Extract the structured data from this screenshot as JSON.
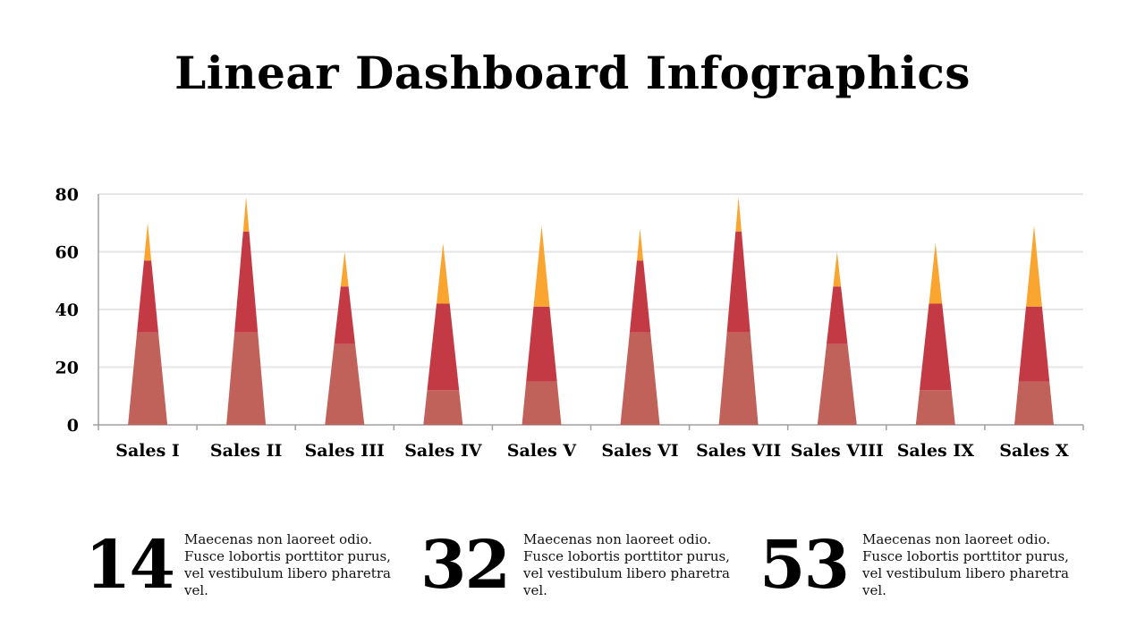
{
  "title": "Linear Dashboard Infographics",
  "colors": {
    "bottom": "#c0625a",
    "middle": "#c33a45",
    "top": "#f9a530",
    "grid": "#e6e6e6",
    "axis": "#a0a0a0"
  },
  "chart_data": {
    "type": "bar",
    "title": "",
    "xlabel": "",
    "ylabel": "",
    "ylim": [
      0,
      80
    ],
    "yticks": [
      0,
      20,
      40,
      60,
      80
    ],
    "grid": true,
    "categories": [
      "Sales I",
      "Sales II",
      "Sales III",
      "Sales IV",
      "Sales V",
      "Sales VI",
      "Sales VII",
      "Sales VIII",
      "Sales IX",
      "Sales X"
    ],
    "stacked": true,
    "series": [
      {
        "values": [
          32,
          32,
          28,
          12,
          15,
          32,
          32,
          28,
          12,
          15
        ]
      },
      {
        "values": [
          25,
          35,
          20,
          30,
          26,
          25,
          35,
          20,
          30,
          26
        ]
      },
      {
        "values": [
          13,
          12,
          12,
          21,
          28,
          11,
          12,
          12,
          21,
          28
        ]
      }
    ]
  },
  "stats": [
    {
      "number": "14",
      "text": "Maecenas non laoreet odio. Fusce lobortis porttitor purus, vel vestibulum libero pharetra vel."
    },
    {
      "number": "32",
      "text": "Maecenas non laoreet odio. Fusce lobortis porttitor purus, vel vestibulum libero pharetra vel."
    },
    {
      "number": "53",
      "text": "Maecenas non laoreet odio. Fusce lobortis porttitor purus, vel vestibulum libero pharetra vel."
    }
  ]
}
